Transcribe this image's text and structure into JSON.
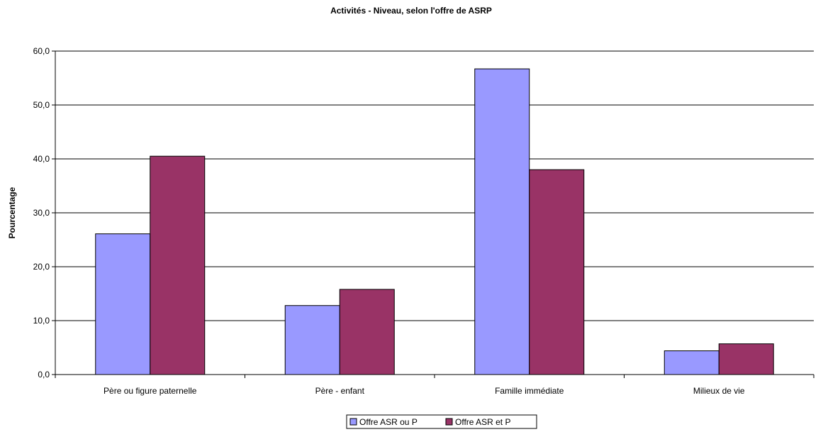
{
  "chart_data": {
    "type": "bar",
    "title": "Activités - Niveau, selon l'offre de  ASRP",
    "xlabel": "",
    "ylabel": "Pourcentage",
    "ylim": [
      0,
      60
    ],
    "ytick_labels": [
      "0,0",
      "10,0",
      "20,0",
      "30,0",
      "40,0",
      "50,0",
      "60,0"
    ],
    "grid": true,
    "legend_position": "bottom",
    "categories": [
      "Père ou figure paternelle",
      "Père - enfant",
      "Famille immédiate",
      "Milieux de vie"
    ],
    "series": [
      {
        "name": "Offre ASR ou P",
        "color": "#9999ff",
        "values": [
          26.1,
          12.8,
          56.7,
          4.4
        ]
      },
      {
        "name": "Offre ASR et P",
        "color": "#993366",
        "values": [
          40.5,
          15.8,
          38.0,
          5.7
        ]
      }
    ]
  }
}
